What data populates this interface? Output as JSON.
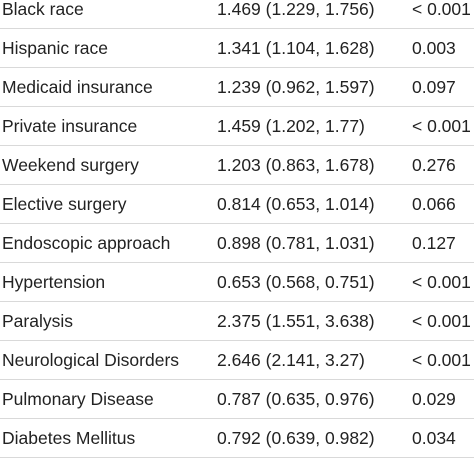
{
  "table": {
    "rows": [
      {
        "variable": "Black race",
        "or_ci": "1.469 (1.229, 1.756)",
        "p": "< 0.001"
      },
      {
        "variable": "Hispanic race",
        "or_ci": "1.341 (1.104, 1.628)",
        "p": "0.003"
      },
      {
        "variable": "Medicaid insurance",
        "or_ci": "1.239 (0.962, 1.597)",
        "p": "0.097"
      },
      {
        "variable": "Private insurance",
        "or_ci": "1.459 (1.202, 1.77)",
        "p": "< 0.001"
      },
      {
        "variable": "Weekend surgery",
        "or_ci": "1.203 (0.863, 1.678)",
        "p": "0.276"
      },
      {
        "variable": "Elective surgery",
        "or_ci": "0.814 (0.653, 1.014)",
        "p": "0.066"
      },
      {
        "variable": "Endoscopic approach",
        "or_ci": "0.898 (0.781, 1.031)",
        "p": "0.127"
      },
      {
        "variable": "Hypertension",
        "or_ci": "0.653 (0.568, 0.751)",
        "p": "< 0.001"
      },
      {
        "variable": "Paralysis",
        "or_ci": "2.375 (1.551, 3.638)",
        "p": "< 0.001"
      },
      {
        "variable": "Neurological Disorders",
        "or_ci": "2.646 (2.141, 3.27)",
        "p": "< 0.001"
      },
      {
        "variable": "Pulmonary Disease",
        "or_ci": "0.787 (0.635, 0.976)",
        "p": "0.029"
      },
      {
        "variable": "Diabetes Mellitus",
        "or_ci": "0.792 (0.639, 0.982)",
        "p": "0.034"
      }
    ]
  }
}
